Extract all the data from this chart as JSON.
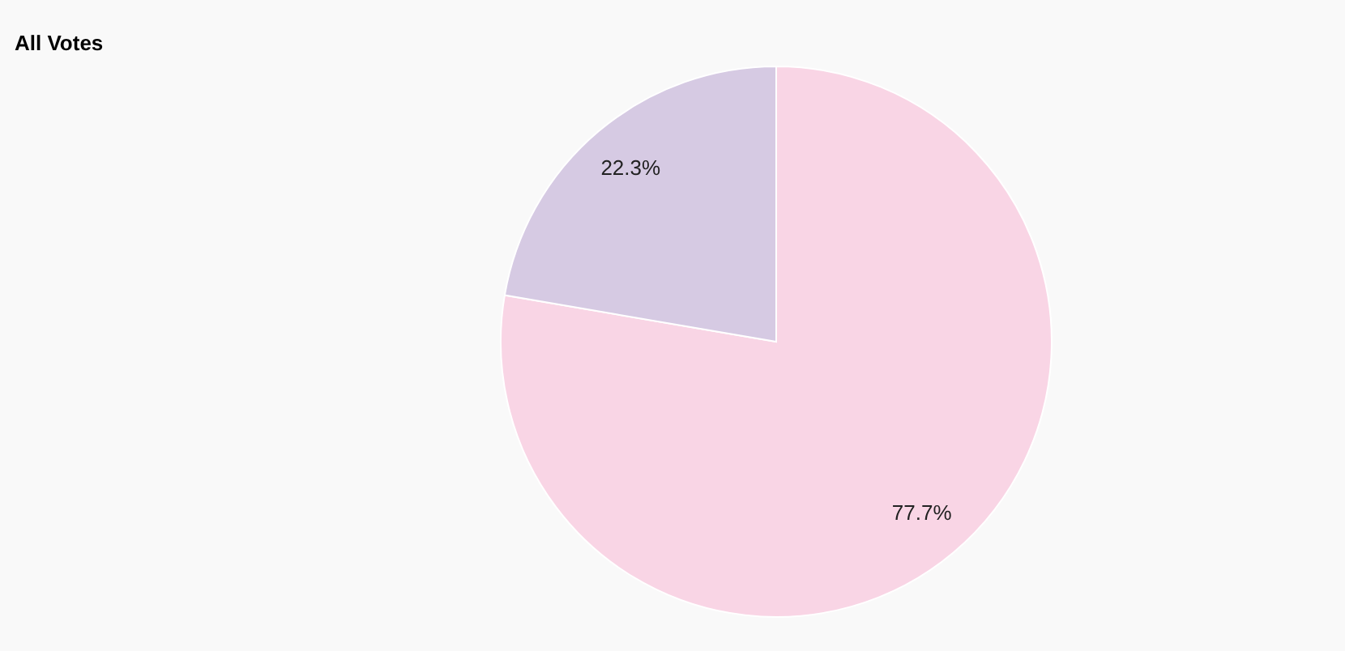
{
  "chart_data": {
    "type": "pie",
    "title": "All Votes",
    "categories": [
      null,
      null
    ],
    "values": [
      77.7,
      22.3
    ],
    "colors": [
      "#f9d5e5",
      "#d6cae3"
    ],
    "value_labels": [
      "77.7%",
      "22.3%"
    ]
  }
}
